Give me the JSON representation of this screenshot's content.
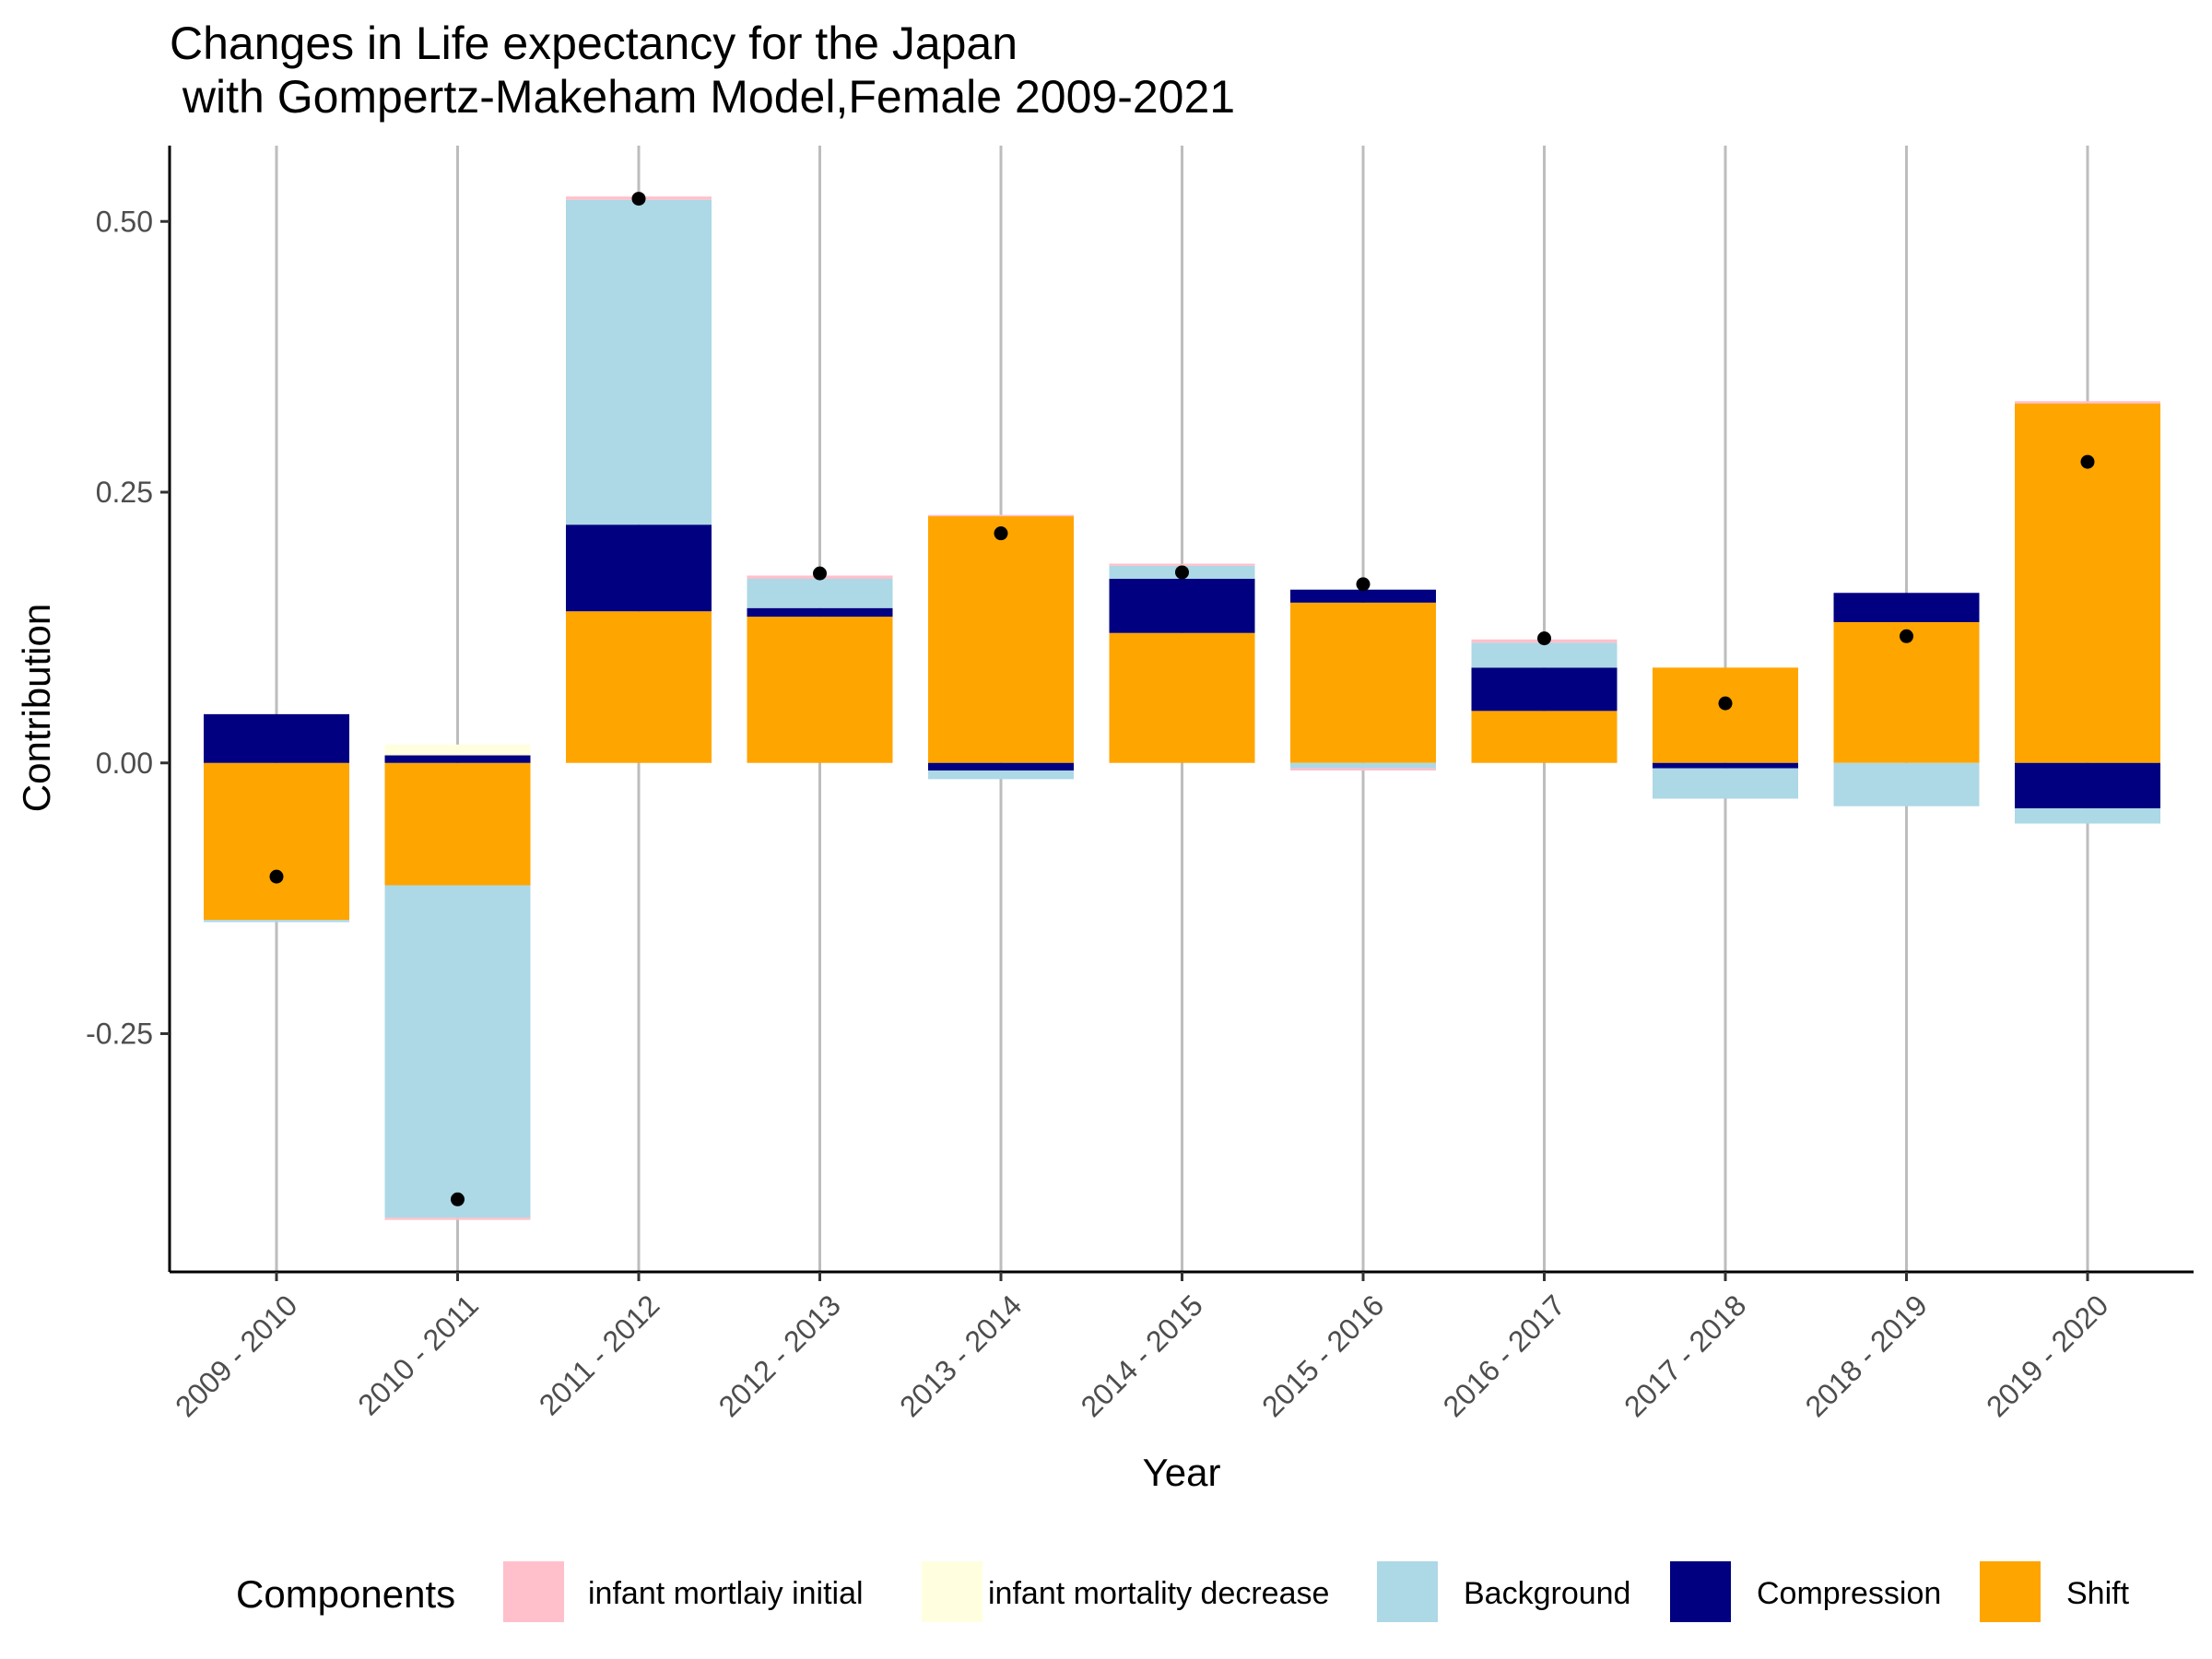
{
  "chart_data": {
    "type": "bar",
    "title_line1": "Changes in Life expectancy for the Japan",
    "title_line2": " with Gompertz-Makeham Model,Female 2009-2021",
    "xlabel": "Year",
    "ylabel": "Contribution",
    "ylim": [
      -0.47,
      0.57
    ],
    "yticks": [
      -0.25,
      0.0,
      0.25,
      0.5
    ],
    "ytick_labels": [
      "-0.25",
      "0.00",
      "0.25",
      "0.50"
    ],
    "grid": "vertical-major",
    "legend_title": "Components",
    "legend_position": "bottom",
    "categories": [
      "2009 - 2010",
      "2010 - 2011",
      "2011 - 2012",
      "2012 - 2013",
      "2013 - 2014",
      "2014 - 2015",
      "2015 - 2016",
      "2016 - 2017",
      "2017 - 2018",
      "2018 - 2019",
      "2019 - 2020"
    ],
    "series": [
      {
        "name": "Shift",
        "color": "#FFA500",
        "values": [
          -0.145,
          -0.113,
          0.14,
          0.135,
          0.228,
          0.12,
          0.148,
          0.048,
          0.088,
          0.13,
          0.332
        ]
      },
      {
        "name": "Compression",
        "color": "#000080",
        "values": [
          0.045,
          0.007,
          0.08,
          0.008,
          -0.007,
          0.05,
          0.012,
          0.04,
          -0.005,
          0.027,
          -0.042
        ]
      },
      {
        "name": "Background",
        "color": "#ADD8E6",
        "values": [
          -0.002,
          -0.307,
          0.3,
          0.027,
          -0.008,
          0.012,
          -0.005,
          0.023,
          -0.028,
          -0.04,
          -0.014
        ]
      },
      {
        "name": "infant mortality decrease",
        "color": "#FFFFE0",
        "values": [
          0.0,
          0.01,
          0.0,
          0.0,
          0.0,
          0.0,
          0.0,
          0.0,
          0.0,
          0.0,
          0.0
        ]
      },
      {
        "name": "infant mortlaiy initial",
        "color": "#FFC0CB",
        "values": [
          0.0,
          -0.002,
          0.003,
          0.003,
          0.001,
          0.002,
          -0.002,
          0.003,
          0.0,
          0.0,
          0.002
        ]
      }
    ],
    "totals": [
      -0.105,
      -0.403,
      0.521,
      0.175,
      0.212,
      0.176,
      0.165,
      0.115,
      0.055,
      0.117,
      0.278
    ],
    "legend_order": [
      "infant mortlaiy initial",
      "infant mortality decrease",
      "Background",
      "Compression",
      "Shift"
    ]
  }
}
